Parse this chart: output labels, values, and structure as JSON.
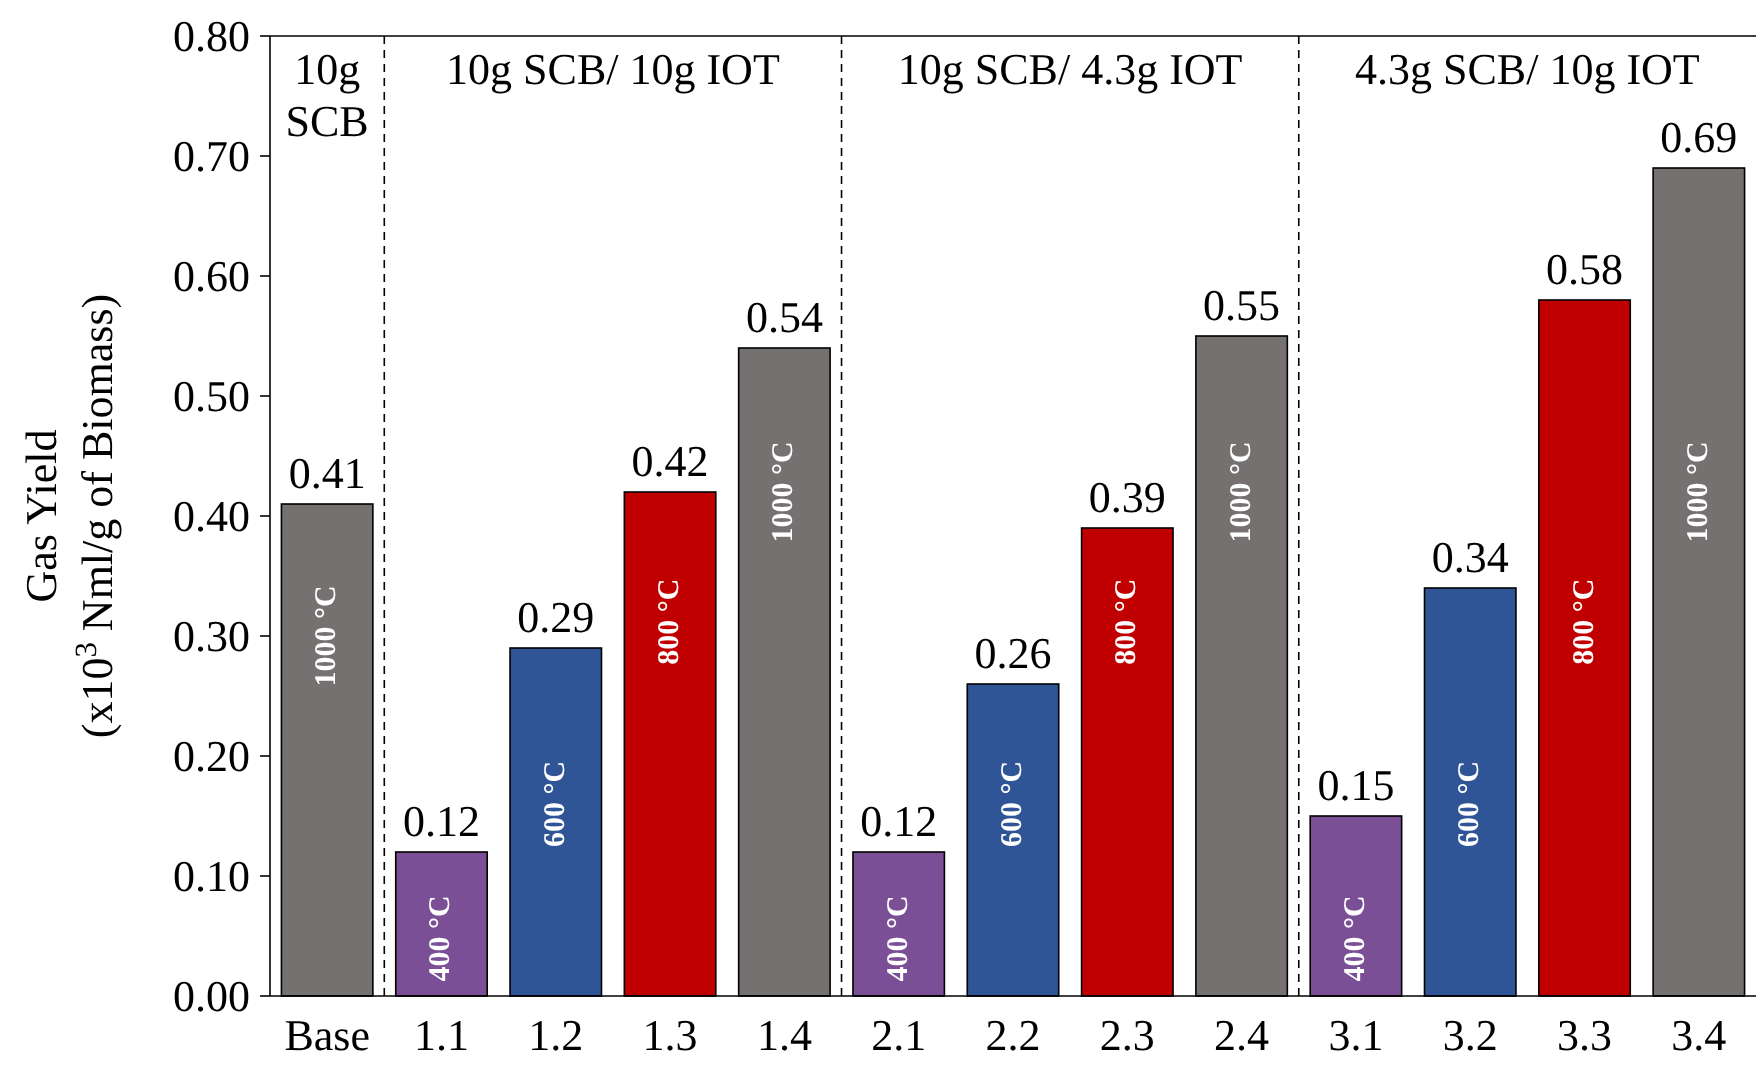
{
  "chart_data": {
    "type": "bar",
    "ylabel": "Gas Yield\n(x10$^{3}$ Nml/g of Biomass)",
    "categories": [
      "Base",
      "1.1",
      "1.2",
      "1.3",
      "1.4",
      "2.1",
      "2.2",
      "2.3",
      "2.4",
      "3.1",
      "3.2",
      "3.3",
      "3.4"
    ],
    "values": [
      0.41,
      0.12,
      0.29,
      0.42,
      0.54,
      0.12,
      0.26,
      0.39,
      0.55,
      0.15,
      0.34,
      0.58,
      0.69
    ],
    "colors": [
      "#767171",
      "#7a4f96",
      "#2f5597",
      "#c00000",
      "#767171",
      "#7a4f96",
      "#2f5597",
      "#c00000",
      "#767171",
      "#7a4f96",
      "#2f5597",
      "#c00000",
      "#767171"
    ],
    "data_labels": true,
    "ylim": [
      0,
      0.8
    ],
    "yticks": [
      {
        "value": 0,
        "label": "0.00"
      },
      {
        "value": 0.1,
        "label": "0.10"
      },
      {
        "value": 0.2,
        "label": "0.20"
      },
      {
        "value": 0.3,
        "label": "0.30"
      },
      {
        "value": 0.4,
        "label": "0.40"
      },
      {
        "value": 0.5,
        "label": "0.50"
      },
      {
        "value": 0.6,
        "label": "0.60"
      },
      {
        "value": 0.7,
        "label": "0.70"
      },
      {
        "value": 0.8,
        "label": "0.80"
      }
    ],
    "grid": false,
    "annotations": [
      "10g SCB",
      "10g SCB/ 10g IOT",
      "10g SCB/ 4.3g IOT",
      "4.3g SCB/ 10g IOT",
      "1000 °C",
      "400 °C",
      "600 °C",
      "800 °C",
      "1000 °C",
      "400 °C",
      "600 °C",
      "800 °C",
      "1000 °C",
      "400 °C",
      "600 °C",
      "800 °C",
      "1000 °C"
    ]
  }
}
